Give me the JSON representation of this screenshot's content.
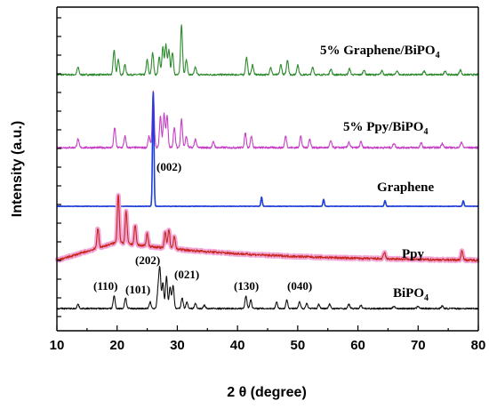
{
  "chart_data": {
    "type": "line",
    "xlabel": "2 θ (degree)",
    "ylabel": "Intensity (a.u.)",
    "xlim": [
      10,
      80
    ],
    "x_ticks": [
      "10",
      "20",
      "30",
      "40",
      "50",
      "60",
      "70",
      "80"
    ],
    "grid": false,
    "series": [
      {
        "name": "5% Graphene/BiPO",
        "name_sub": "4",
        "color": "#2e8b2e",
        "baseline": 0,
        "peaks": [
          [
            13.5,
            0.15
          ],
          [
            19.5,
            0.5
          ],
          [
            20.2,
            0.3
          ],
          [
            21.3,
            0.2
          ],
          [
            25.0,
            0.3
          ],
          [
            25.9,
            0.45
          ],
          [
            27.0,
            0.35
          ],
          [
            27.6,
            0.55
          ],
          [
            28.1,
            0.6
          ],
          [
            28.6,
            0.5
          ],
          [
            29.2,
            0.45
          ],
          [
            30.7,
            1.0
          ],
          [
            31.5,
            0.3
          ],
          [
            33.0,
            0.15
          ],
          [
            41.5,
            0.35
          ],
          [
            42.5,
            0.2
          ],
          [
            45.5,
            0.15
          ],
          [
            47.2,
            0.2
          ],
          [
            48.3,
            0.3
          ],
          [
            50.0,
            0.2
          ],
          [
            52.5,
            0.15
          ],
          [
            55.5,
            0.12
          ],
          [
            58.6,
            0.12
          ],
          [
            61.0,
            0.1
          ],
          [
            64.0,
            0.08
          ],
          [
            66.5,
            0.08
          ],
          [
            71.0,
            0.08
          ],
          [
            74.5,
            0.08
          ],
          [
            77.0,
            0.1
          ]
        ]
      },
      {
        "name": "5% Ppy/BiPO",
        "name_sub": "4",
        "color": "#c640c6",
        "baseline": 0,
        "peaks": [
          [
            13.5,
            0.15
          ],
          [
            19.6,
            0.35
          ],
          [
            21.3,
            0.2
          ],
          [
            25.3,
            0.2
          ],
          [
            26.0,
            1.0
          ],
          [
            27.2,
            0.55
          ],
          [
            27.8,
            0.6
          ],
          [
            28.3,
            0.55
          ],
          [
            29.5,
            0.35
          ],
          [
            30.7,
            0.5
          ],
          [
            31.5,
            0.2
          ],
          [
            33.0,
            0.15
          ],
          [
            36.0,
            0.1
          ],
          [
            41.3,
            0.25
          ],
          [
            42.3,
            0.2
          ],
          [
            48.0,
            0.2
          ],
          [
            50.5,
            0.2
          ],
          [
            52.0,
            0.15
          ],
          [
            55.5,
            0.12
          ],
          [
            58.5,
            0.1
          ],
          [
            60.5,
            0.1
          ],
          [
            66.0,
            0.08
          ],
          [
            70.5,
            0.08
          ],
          [
            74.0,
            0.08
          ],
          [
            77.2,
            0.1
          ]
        ]
      },
      {
        "name": "Graphene",
        "name_sub": "",
        "color": "#1f3fd9",
        "baseline": 0,
        "peaks": [
          [
            26.0,
            1.0
          ],
          [
            44.0,
            0.08
          ],
          [
            54.3,
            0.06
          ],
          [
            64.5,
            0.05
          ],
          [
            77.5,
            0.05
          ]
        ]
      },
      {
        "name": "Ppy",
        "name_sub": "",
        "color": "#c8281e",
        "baseline": 0.3,
        "peaks": [
          [
            16.8,
            0.3
          ],
          [
            20.2,
            0.75
          ],
          [
            21.5,
            0.5
          ],
          [
            23.0,
            0.3
          ],
          [
            25.0,
            0.2
          ],
          [
            28.0,
            0.25
          ],
          [
            28.6,
            0.3
          ],
          [
            29.5,
            0.2
          ],
          [
            64.4,
            0.1
          ],
          [
            77.3,
            0.15
          ]
        ]
      },
      {
        "name": "BiPO",
        "name_sub": "4",
        "color": "#111111",
        "baseline": 0,
        "peaks": [
          [
            13.5,
            0.1
          ],
          [
            19.5,
            0.3
          ],
          [
            21.4,
            0.25
          ],
          [
            25.5,
            0.15
          ],
          [
            26.8,
            0.4
          ],
          [
            27.1,
            0.9
          ],
          [
            27.6,
            0.6
          ],
          [
            28.2,
            0.75
          ],
          [
            28.8,
            0.5
          ],
          [
            29.3,
            0.55
          ],
          [
            30.8,
            0.25
          ],
          [
            31.6,
            0.15
          ],
          [
            33.0,
            0.12
          ],
          [
            34.5,
            0.08
          ],
          [
            41.4,
            0.3
          ],
          [
            42.2,
            0.2
          ],
          [
            46.5,
            0.15
          ],
          [
            48.2,
            0.2
          ],
          [
            50.3,
            0.15
          ],
          [
            51.5,
            0.12
          ],
          [
            53.5,
            0.1
          ],
          [
            55.3,
            0.1
          ],
          [
            58.5,
            0.1
          ],
          [
            60.5,
            0.08
          ],
          [
            66.0,
            0.06
          ],
          [
            70.0,
            0.06
          ],
          [
            74.0,
            0.06
          ]
        ]
      }
    ],
    "annotations": [
      "(002)",
      "(202)",
      "(110)",
      "(101)",
      "(021)",
      "(130)",
      "(040)"
    ]
  }
}
